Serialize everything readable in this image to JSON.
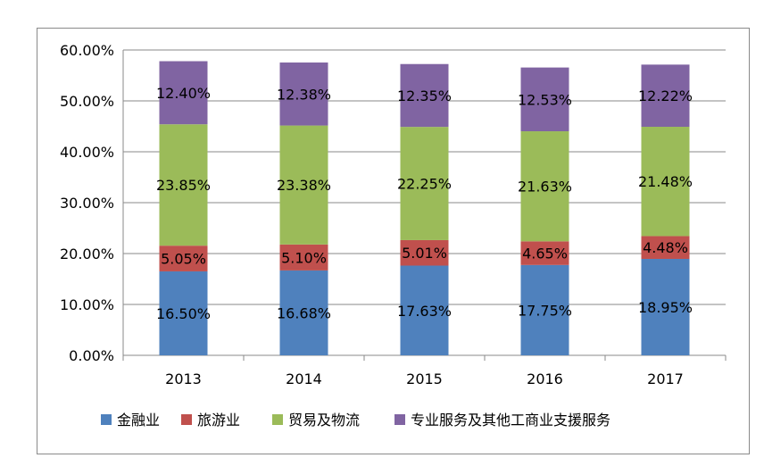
{
  "chart_data": {
    "type": "bar",
    "stacked": true,
    "categories": [
      "2013",
      "2014",
      "2015",
      "2016",
      "2017"
    ],
    "series": [
      {
        "name": "金融业",
        "color": "#4f81bd",
        "values": [
          16.5,
          16.68,
          17.63,
          17.75,
          18.95
        ],
        "labels": [
          "16.50%",
          "16.68%",
          "17.63%",
          "17.75%",
          "18.95%"
        ]
      },
      {
        "name": "旅游业",
        "color": "#c0504d",
        "values": [
          5.05,
          5.1,
          5.01,
          4.65,
          4.48
        ],
        "labels": [
          "5.05%",
          "5.10%",
          "5.01%",
          "4.65%",
          "4.48%"
        ]
      },
      {
        "name": "贸易及物流",
        "color": "#9bbb59",
        "values": [
          23.85,
          23.38,
          22.25,
          21.63,
          21.48
        ],
        "labels": [
          "23.85%",
          "23.38%",
          "22.25%",
          "21.63%",
          "21.48%"
        ]
      },
      {
        "name": "专业服务及其他工商业支援服务",
        "color": "#8064a2",
        "values": [
          12.4,
          12.38,
          12.35,
          12.53,
          12.22
        ],
        "labels": [
          "12.40%",
          "12.38%",
          "12.35%",
          "12.53%",
          "12.22%"
        ]
      }
    ],
    "yticks": [
      "0.00%",
      "10.00%",
      "20.00%",
      "30.00%",
      "40.00%",
      "50.00%",
      "60.00%"
    ],
    "ylim": [
      0,
      60
    ],
    "grid": true,
    "legend_position": "bottom"
  }
}
